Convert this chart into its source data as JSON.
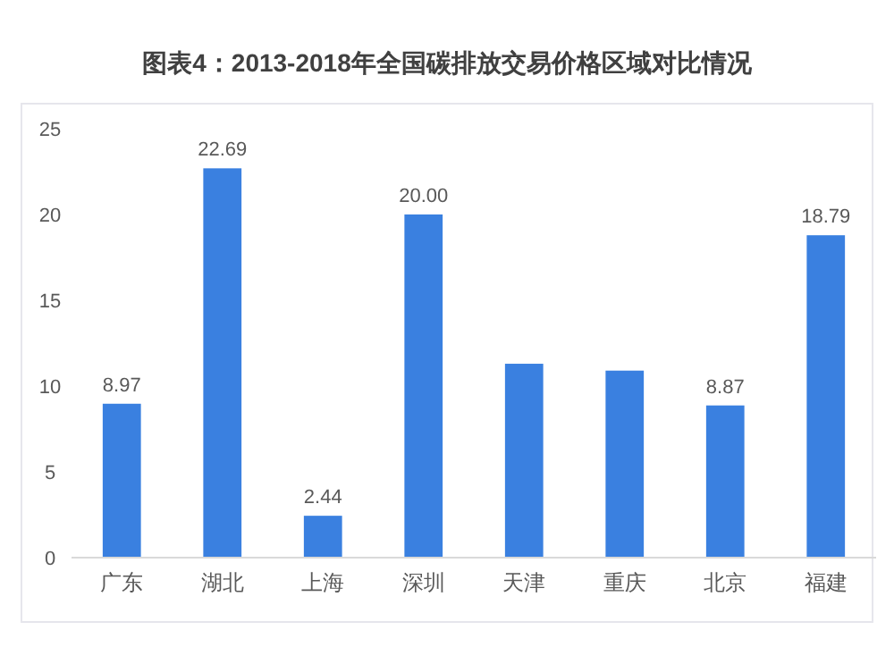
{
  "chart_data": {
    "type": "bar",
    "title": "图表4：2013-2018年全国碳排放交易价格区域对比情况",
    "categories": [
      "广东",
      "湖北",
      "上海",
      "深圳",
      "天津",
      "重庆",
      "北京",
      "福建"
    ],
    "values": [
      8.97,
      22.69,
      2.44,
      20.0,
      11.3,
      10.9,
      8.87,
      18.79
    ],
    "value_labels": [
      "8.97",
      "22.69",
      "2.44",
      "20.00",
      null,
      null,
      "8.87",
      "18.79"
    ],
    "color": "#3a80e0",
    "ylim": [
      0,
      25
    ],
    "yticks": [
      0,
      5,
      10,
      15,
      20,
      25
    ]
  }
}
